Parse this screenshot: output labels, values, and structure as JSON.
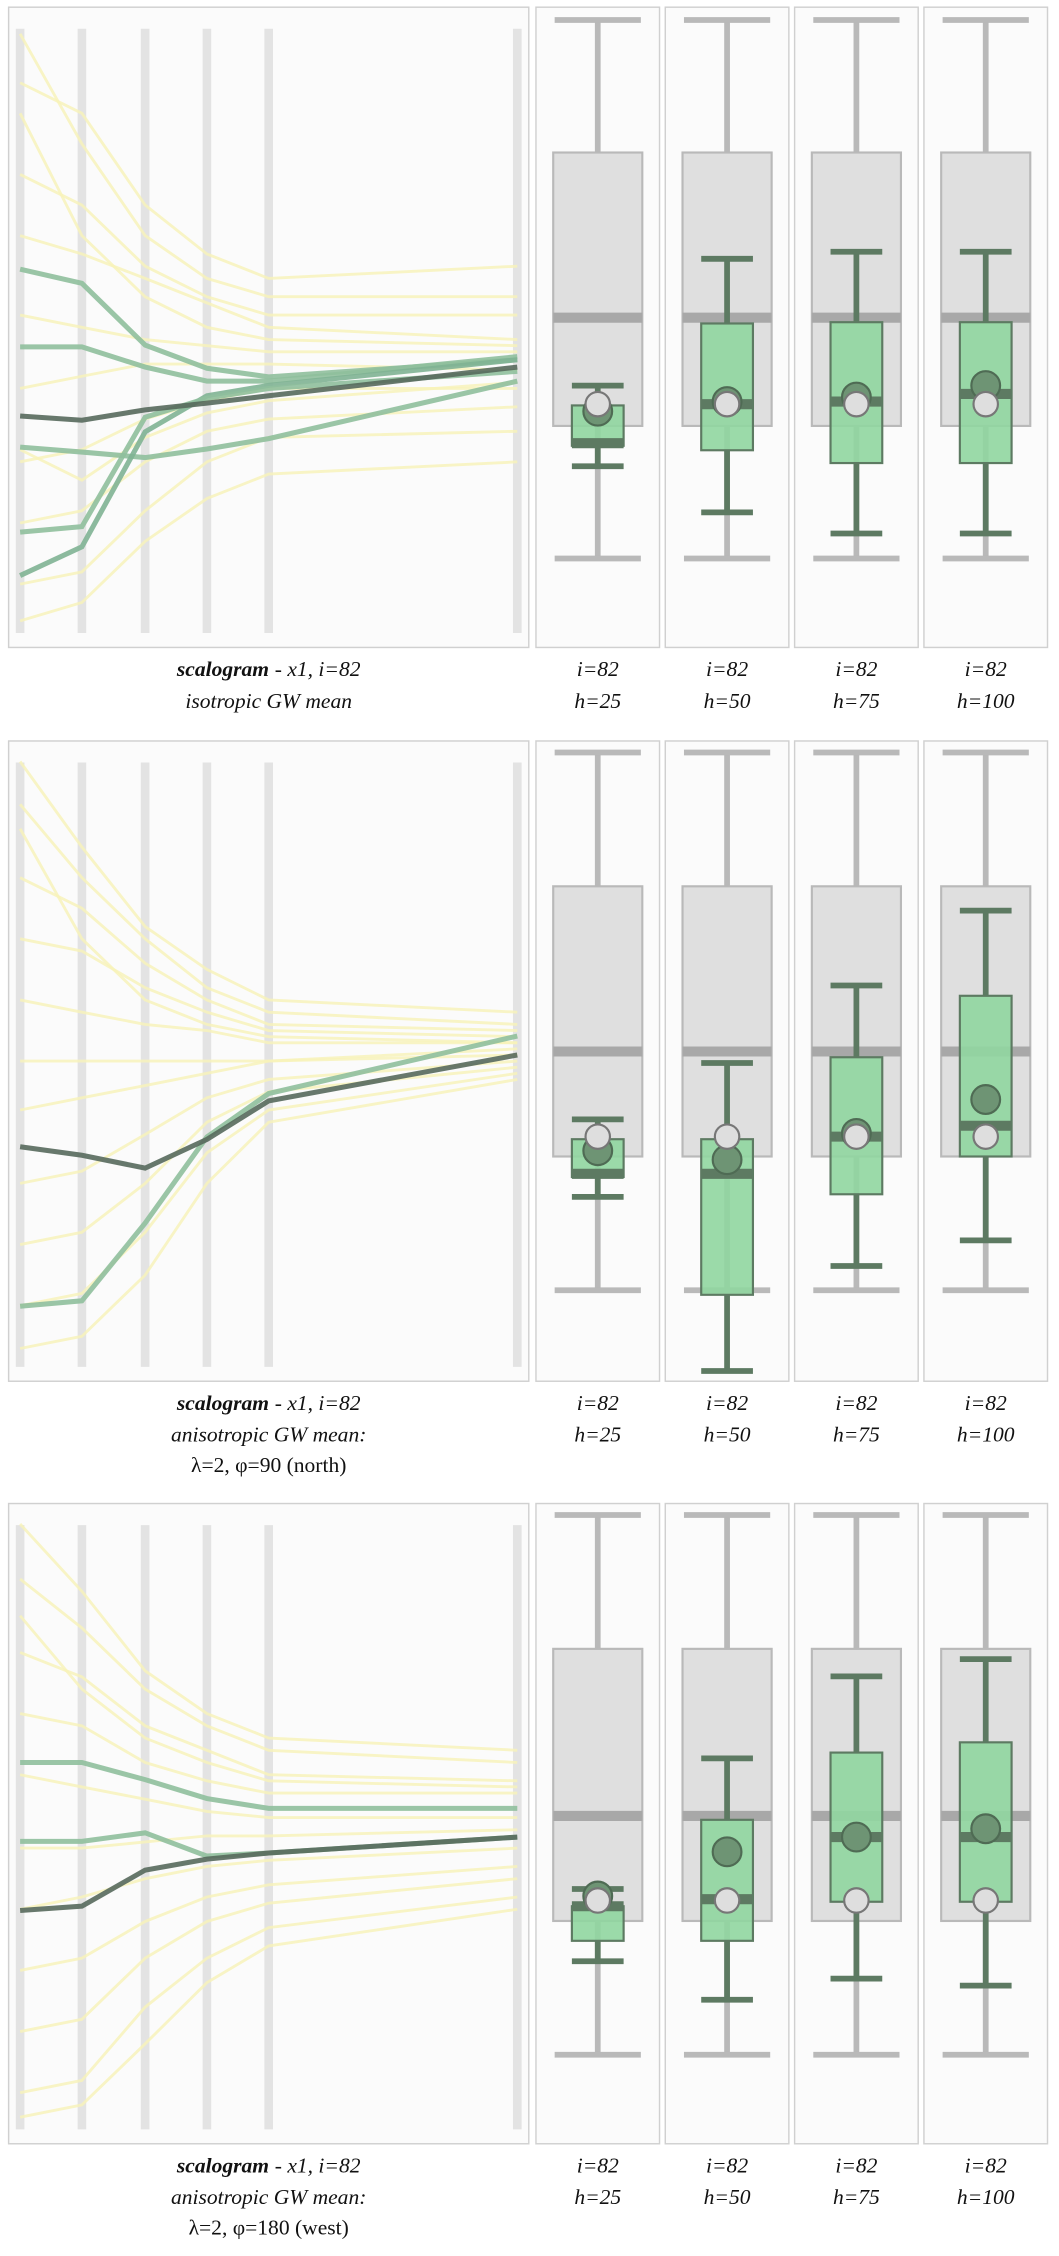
{
  "chart_data": [
    {
      "scalogram": {
        "type": "line",
        "ylim": [
          0,
          100
        ],
        "background": {
          "color": "#f8f3b8",
          "lines": [
            [
              98,
              80,
              65,
              58,
              55,
              55
            ],
            [
              90,
              85,
              70,
              62,
              58,
              60
            ],
            [
              75,
              70,
              60,
              55,
              52,
              52
            ],
            [
              65,
              62,
              58,
              54,
              50,
              48
            ],
            [
              52,
              50,
              48,
              47,
              46,
              46
            ],
            [
              40,
              42,
              44,
              44,
              44,
              43
            ],
            [
              28,
              30,
              35,
              38,
              40,
              40
            ],
            [
              18,
              20,
              28,
              33,
              35,
              37
            ],
            [
              8,
              10,
              20,
              28,
              32,
              33
            ],
            [
              2,
              5,
              15,
              22,
              26,
              28
            ],
            [
              85,
              65,
              55,
              50,
              48,
              47
            ],
            [
              30,
              25,
              32,
              36,
              38,
              41
            ]
          ]
        },
        "series": [
          {
            "color": "#8fbf9c",
            "values": [
              59.5,
              57.2,
              47.1,
              43.3,
              41.9,
              44.7
            ]
          },
          {
            "color": "#8fbf9c",
            "values": [
              46.8,
              46.8,
              43.5,
              41.2,
              41.2,
              45.2
            ]
          },
          {
            "color": "#8fbf9c",
            "values": [
              30.4,
              29.6,
              28.7,
              30.1,
              31.8,
              41.2
            ]
          },
          {
            "color": "#7fb394",
            "values": [
              9.4,
              14.1,
              32.9,
              38.8,
              40.5,
              44.7
            ]
          },
          {
            "color": "#8fbf9c",
            "values": [
              16.5,
              17.4,
              35.3,
              38.4,
              40,
              42.8
            ]
          },
          {
            "color": "#56695c",
            "values": [
              35.5,
              34.8,
              36.5,
              37.6,
              38.8,
              43.5
            ]
          }
        ]
      },
      "label": {
        "name": "scalogram",
        "detail": "- x1, i=82",
        "description": "isotropic GW mean"
      },
      "box_colors": {
        "reference": "#dcdcdc",
        "local": "#90d6a0",
        "mean": "#6e9474",
        "observed": "#dedede"
      },
      "boxplots": [
        {
          "type": "box",
          "ylim": [
            0,
            100
          ],
          "label": [
            "i=82",
            "h=25"
          ],
          "reference": {
            "whisker_low": 13.9,
            "q1": 34.6,
            "median": 51.5,
            "q3": 77.3,
            "whisker_high": 98
          },
          "local": {
            "whisker_low": 28.3,
            "q1": 31.5,
            "median": 31.9,
            "q3": 37.8,
            "whisker_high": 40.9
          },
          "mean": 36.9,
          "observed": 38
        },
        {
          "type": "box",
          "ylim": [
            0,
            100
          ],
          "label": [
            "i=82",
            "h=50"
          ],
          "reference": {
            "whisker_low": 13.9,
            "q1": 34.6,
            "median": 51.5,
            "q3": 77.3,
            "whisker_high": 98
          },
          "local": {
            "whisker_low": 21.1,
            "q1": 30.8,
            "median": 38,
            "q3": 50.6,
            "whisker_high": 60.7
          },
          "mean": 38.4,
          "observed": 38
        },
        {
          "type": "box",
          "ylim": [
            0,
            100
          ],
          "label": [
            "i=82",
            "h=75"
          ],
          "reference": {
            "whisker_low": 13.9,
            "q1": 34.6,
            "median": 51.5,
            "q3": 77.3,
            "whisker_high": 98
          },
          "local": {
            "whisker_low": 17.8,
            "q1": 28.8,
            "median": 38.4,
            "q3": 50.8,
            "whisker_high": 61.8
          },
          "mean": 39.1,
          "observed": 38
        },
        {
          "type": "box",
          "ylim": [
            0,
            100
          ],
          "label": [
            "i=82",
            "h=100"
          ],
          "reference": {
            "whisker_low": 13.9,
            "q1": 34.6,
            "median": 51.5,
            "q3": 77.3,
            "whisker_high": 98
          },
          "local": {
            "whisker_low": 17.8,
            "q1": 28.8,
            "median": 39.6,
            "q3": 50.8,
            "whisker_high": 61.8
          },
          "mean": 40.9,
          "observed": 38
        }
      ]
    },
    {
      "scalogram": {
        "type": "line",
        "ylim": [
          0,
          100
        ],
        "background": {
          "color": "#f8f3b8",
          "lines": [
            [
              99,
              85,
              72,
              65,
              60,
              58
            ],
            [
              92,
              80,
              70,
              62,
              58,
              56
            ],
            [
              80,
              75,
              66,
              60,
              56,
              55
            ],
            [
              70,
              68,
              62,
              58,
              55,
              54
            ],
            [
              60,
              58,
              56,
              55,
              53,
              53
            ],
            [
              50,
              50,
              50,
              50,
              50,
              52
            ],
            [
              42,
              44,
              46,
              48,
              50,
              51
            ],
            [
              30,
              32,
              38,
              44,
              47,
              50
            ],
            [
              20,
              22,
              30,
              40,
              45,
              49
            ],
            [
              10,
              12,
              22,
              35,
              42,
              48
            ],
            [
              3,
              5,
              15,
              30,
              40,
              47
            ],
            [
              88,
              70,
              60,
              56,
              54,
              53
            ]
          ]
        },
        "series": [
          {
            "color": "#8fbf9c",
            "values": [
              9.9,
              10.8,
              23.5,
              37.6,
              44.7,
              54.1
            ]
          },
          {
            "color": "#56695c",
            "values": [
              36,
              34.6,
              32.5,
              37.2,
              43.5,
              51
            ]
          }
        ]
      },
      "label": {
        "name": "scalogram",
        "detail": "- x1, i=82",
        "description": "anisotropic GW mean:",
        "parameters": "λ=2, φ=90 (north)"
      },
      "box_colors": {
        "reference": "#dcdcdc",
        "local": "#90d6a0",
        "mean": "#6e9474",
        "observed": "#dedede"
      },
      "boxplots": [
        {
          "type": "box",
          "ylim": [
            0,
            100
          ],
          "label": [
            "i=82",
            "h=25"
          ],
          "reference": {
            "whisker_low": 14.2,
            "q1": 35.1,
            "median": 51.5,
            "q3": 77.3,
            "whisker_high": 98.2
          },
          "local": {
            "whisker_low": 28.8,
            "q1": 31.9,
            "median": 32.4,
            "q3": 37.8,
            "whisker_high": 40.9
          },
          "mean": 36,
          "observed": 38.2
        },
        {
          "type": "box",
          "ylim": [
            0,
            100
          ],
          "label": [
            "i=82",
            "h=50"
          ],
          "reference": {
            "whisker_low": 14.2,
            "q1": 35.1,
            "median": 51.5,
            "q3": 77.3,
            "whisker_high": 98.2
          },
          "local": {
            "whisker_low": 1.6,
            "q1": 13.5,
            "median": 32.4,
            "q3": 37.8,
            "whisker_high": 49.7
          },
          "mean": 34.6,
          "observed": 38.2
        },
        {
          "type": "box",
          "ylim": [
            0,
            100
          ],
          "label": [
            "i=82",
            "h=75"
          ],
          "reference": {
            "whisker_low": 14.2,
            "q1": 35.1,
            "median": 51.5,
            "q3": 77.3,
            "whisker_high": 98.2
          },
          "local": {
            "whisker_low": 18,
            "q1": 29.2,
            "median": 38.2,
            "q3": 50.6,
            "whisker_high": 61.8
          },
          "mean": 38.7,
          "observed": 38.2
        },
        {
          "type": "box",
          "ylim": [
            0,
            100
          ],
          "label": [
            "i=82",
            "h=100"
          ],
          "reference": {
            "whisker_low": 14.2,
            "q1": 35.1,
            "median": 51.5,
            "q3": 77.3,
            "whisker_high": 98.2
          },
          "local": {
            "whisker_low": 22,
            "q1": 35.1,
            "median": 39.9,
            "q3": 60.2,
            "whisker_high": 73.5
          },
          "mean": 44,
          "observed": 38.2
        }
      ]
    },
    {
      "scalogram": {
        "type": "line",
        "ylim": [
          0,
          100
        ],
        "background": {
          "color": "#f8f3b8",
          "lines": [
            [
              99,
              88,
              75,
              68,
              64,
              62
            ],
            [
              90,
              82,
              72,
              66,
              62,
              60
            ],
            [
              78,
              74,
              66,
              62,
              58,
              57
            ],
            [
              68,
              66,
              60,
              57,
              55,
              55
            ],
            [
              58,
              56,
              54,
              52,
              51,
              51
            ],
            [
              46,
              46,
              47,
              48,
              48,
              49
            ],
            [
              36,
              38,
              41,
              43,
              44,
              46
            ],
            [
              26,
              28,
              34,
              38,
              40,
              43
            ],
            [
              16,
              18,
              28,
              34,
              37,
              41
            ],
            [
              6,
              8,
              20,
              28,
              33,
              38
            ],
            [
              2,
              4,
              14,
              24,
              30,
              36
            ],
            [
              84,
              72,
              64,
              60,
              57,
              56
            ]
          ]
        },
        "series": [
          {
            "color": "#8fbf9c",
            "values": [
              60,
              60,
              57.2,
              54.1,
              52.5,
              52.5
            ]
          },
          {
            "color": "#8fbf9c",
            "values": [
              47.1,
              47.1,
              48.5,
              44.7,
              45.2,
              47.8
            ]
          },
          {
            "color": "#56695c",
            "values": [
              35.8,
              36.5,
              42.4,
              44.2,
              45.2,
              47.8
            ]
          }
        ]
      },
      "label": {
        "name": "scalogram",
        "detail": "- x1, i=82",
        "description": "anisotropic GW mean:",
        "parameters": "λ=2, φ=180 (west)"
      },
      "box_colors": {
        "reference": "#dcdcdc",
        "local": "#90d6a0",
        "mean": "#6e9474",
        "observed": "#dedede"
      },
      "boxplots": [
        {
          "type": "box",
          "ylim": [
            0,
            100
          ],
          "label": [
            "i=82",
            "h=25"
          ],
          "reference": {
            "whisker_low": 13.9,
            "q1": 34.8,
            "median": 51.2,
            "q3": 77.3,
            "whisker_high": 98.2
          },
          "local": {
            "whisker_low": 28.5,
            "q1": 31.7,
            "median": 37.1,
            "q3": 37.1,
            "whisker_high": 39.8
          },
          "mean": 38.7,
          "observed": 38
        },
        {
          "type": "box",
          "ylim": [
            0,
            100
          ],
          "label": [
            "i=82",
            "h=50"
          ],
          "reference": {
            "whisker_low": 13.9,
            "q1": 34.8,
            "median": 51.2,
            "q3": 77.3,
            "whisker_high": 98.2
          },
          "local": {
            "whisker_low": 22.5,
            "q1": 31.7,
            "median": 38.2,
            "q3": 50.6,
            "whisker_high": 60.2
          },
          "mean": 45.6,
          "observed": 38
        },
        {
          "type": "box",
          "ylim": [
            0,
            100
          ],
          "label": [
            "i=82",
            "h=75"
          ],
          "reference": {
            "whisker_low": 13.9,
            "q1": 34.8,
            "median": 51.2,
            "q3": 77.3,
            "whisker_high": 98.2
          },
          "local": {
            "whisker_low": 25.8,
            "q1": 37.8,
            "median": 47.9,
            "q3": 61.1,
            "whisker_high": 73
          },
          "mean": 47.9,
          "observed": 38
        },
        {
          "type": "box",
          "ylim": [
            0,
            100
          ],
          "label": [
            "i=82",
            "h=100"
          ],
          "reference": {
            "whisker_low": 13.9,
            "q1": 34.8,
            "median": 51.2,
            "q3": 77.3,
            "whisker_high": 98.2
          },
          "local": {
            "whisker_low": 24.7,
            "q1": 37.8,
            "median": 47.9,
            "q3": 62.7,
            "whisker_high": 75.7
          },
          "mean": 49.2,
          "observed": 38
        }
      ]
    }
  ]
}
